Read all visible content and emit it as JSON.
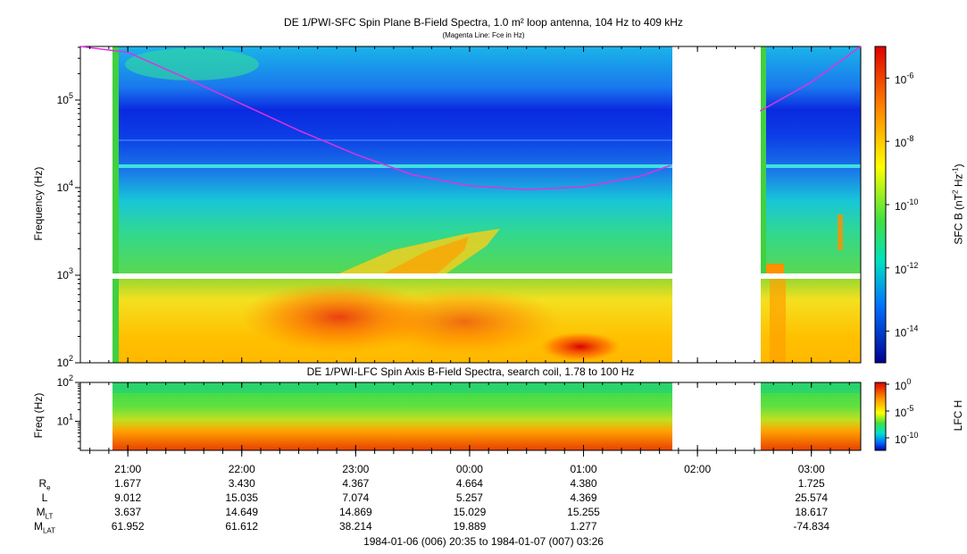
{
  "chart_data": [
    {
      "type": "heatmap",
      "title": "DE 1/PWI-SFC  Spin Plane B-Field Spectra, 1.0 m² loop antenna, 104 Hz to 409 kHz",
      "subtitle": "(Magenta Line: Fce in Hz)",
      "ylabel": "Frequency (Hz)",
      "y_scale": "log",
      "ylim": [
        100,
        409000
      ],
      "y_ticks": [
        "10^2",
        "10^3",
        "10^4",
        "10^5"
      ],
      "colorbar_label": "SFC B (nT² Hz⁻¹)",
      "colorbar_scale": "log",
      "colorbar_range": [
        1e-15,
        1e-05
      ],
      "colorbar_ticks": [
        "10^-6",
        "10^-8",
        "10^-10",
        "10^-12",
        "10^-14"
      ],
      "data_gap": [
        "01:46",
        "02:33"
      ],
      "fce_line": {
        "color": "#e030e0",
        "x": [
          "20:35",
          "21:00",
          "21:30",
          "22:00",
          "22:30",
          "23:00",
          "23:30",
          "00:00",
          "00:30",
          "01:00",
          "01:30",
          "01:46",
          "02:33",
          "03:00",
          "03:26"
        ],
        "y": [
          500000,
          350000,
          180000,
          90000,
          45000,
          24000,
          14000,
          10500,
          9500,
          10200,
          13500,
          18000,
          75000,
          160000,
          500000
        ]
      },
      "features": {
        "emission_band_hz": 16000,
        "data_gap_band_hz": 1000
      }
    },
    {
      "type": "heatmap",
      "title": "DE 1/PWI-LFC  Spin Axis B-Field Spectra, search coil, 1.78 to 100 Hz",
      "ylabel": "Freq (Hz)",
      "y_scale": "log",
      "ylim": [
        1.78,
        100
      ],
      "y_ticks": [
        "10^1",
        "10^2"
      ],
      "colorbar_label": "LFC H",
      "colorbar_scale": "log",
      "colorbar_ticks": [
        "10^0",
        "10^-5",
        "10^-10"
      ],
      "data_gap": [
        "01:46",
        "02:33"
      ]
    }
  ],
  "x_axis": {
    "tick_labels": [
      "21:00",
      "22:00",
      "23:00",
      "00:00",
      "01:00",
      "02:00",
      "03:00"
    ],
    "range_label": "1984-01-06 (006) 20:35 to 1984-01-07 (007) 03:26"
  },
  "ephemeris": {
    "rows": [
      {
        "label": "R",
        "sub": "e",
        "values": [
          "1.677",
          "3.430",
          "4.367",
          "4.664",
          "4.380",
          "",
          "1.725"
        ]
      },
      {
        "label": "L",
        "sub": "",
        "values": [
          "9.012",
          "15.035",
          "7.074",
          "5.257",
          "4.369",
          "",
          "25.574"
        ]
      },
      {
        "label": "M",
        "sub": "LT",
        "values": [
          "3.637",
          "14.649",
          "14.869",
          "15.029",
          "15.255",
          "",
          "18.617"
        ]
      },
      {
        "label": "M",
        "sub": "LAT",
        "values": [
          "61.952",
          "61.612",
          "38.214",
          "19.889",
          "1.277",
          "",
          "-74.834"
        ]
      }
    ]
  }
}
